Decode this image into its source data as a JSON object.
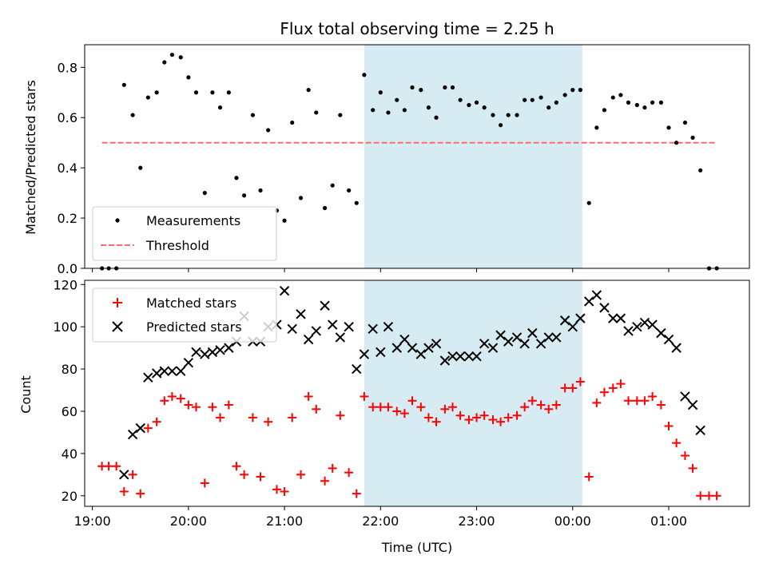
{
  "chart_data": [
    {
      "type": "scatter",
      "title": "Flux total observing time = 2.25 h",
      "xlabel": "",
      "ylabel": "Matched/Predicted stars",
      "ylim": [
        0,
        0.89
      ],
      "yticks": [
        0.0,
        0.2,
        0.4,
        0.6,
        0.8
      ],
      "ytick_labels": [
        "0.0",
        "0.2",
        "0.4",
        "0.6",
        "0.8"
      ],
      "grid": false,
      "legend_position": "lower-left",
      "shaded_region": {
        "x_start": 21.83,
        "x_end": 24.1,
        "color": "#add8e6"
      },
      "colors": {
        "measurements": "#000000",
        "threshold": "#ff6b6b",
        "shade": "#add8e6"
      },
      "series": [
        {
          "name": "Measurements",
          "kind": "points",
          "x": [
            19.1,
            19.17,
            19.25,
            19.33,
            19.42,
            19.5,
            19.58,
            19.67,
            19.75,
            19.83,
            19.92,
            20.0,
            20.08,
            20.17,
            20.25,
            20.33,
            20.42,
            20.5,
            20.58,
            20.67,
            20.75,
            20.83,
            20.92,
            21.0,
            21.08,
            21.17,
            21.25,
            21.33,
            21.42,
            21.5,
            21.58,
            21.67,
            21.75,
            21.83,
            21.92,
            22.0,
            22.08,
            22.17,
            22.25,
            22.33,
            22.42,
            22.5,
            22.58,
            22.67,
            22.75,
            22.83,
            22.92,
            23.0,
            23.08,
            23.17,
            23.25,
            23.33,
            23.42,
            23.5,
            23.58,
            23.67,
            23.75,
            23.83,
            23.92,
            24.0,
            24.08,
            24.17,
            24.25,
            24.33,
            24.42,
            24.5,
            24.58,
            24.67,
            24.75,
            24.83,
            24.92,
            25.0,
            25.08,
            25.17,
            25.25,
            25.33,
            25.42,
            25.5
          ],
          "y": [
            0.0,
            0.0,
            0.0,
            0.73,
            0.61,
            0.4,
            0.68,
            0.7,
            0.82,
            0.85,
            0.84,
            0.76,
            0.7,
            0.3,
            0.7,
            0.64,
            0.7,
            0.36,
            0.29,
            0.61,
            0.31,
            0.55,
            0.23,
            0.19,
            0.58,
            0.28,
            0.71,
            0.62,
            0.24,
            0.33,
            0.61,
            0.31,
            0.26,
            0.77,
            0.63,
            0.7,
            0.62,
            0.67,
            0.63,
            0.72,
            0.71,
            0.64,
            0.6,
            0.72,
            0.72,
            0.67,
            0.65,
            0.66,
            0.64,
            0.61,
            0.57,
            0.61,
            0.61,
            0.67,
            0.67,
            0.68,
            0.64,
            0.66,
            0.69,
            0.71,
            0.71,
            0.26,
            0.56,
            0.63,
            0.68,
            0.69,
            0.66,
            0.65,
            0.64,
            0.66,
            0.66,
            0.56,
            0.5,
            0.58,
            0.52,
            0.39,
            0.0,
            0.0
          ]
        },
        {
          "name": "Threshold",
          "kind": "dashed-line",
          "x": [
            19.1,
            25.5
          ],
          "y": [
            0.5,
            0.5
          ]
        }
      ]
    },
    {
      "type": "scatter",
      "title": "",
      "xlabel": "Time (UTC)",
      "ylabel": "Count",
      "ylim": [
        15,
        122
      ],
      "yticks": [
        20,
        40,
        60,
        80,
        100,
        120
      ],
      "ytick_labels": [
        "20",
        "40",
        "60",
        "80",
        "100",
        "120"
      ],
      "xlim": [
        18.92,
        25.84
      ],
      "xticks": [
        19,
        20,
        21,
        22,
        23,
        24,
        25
      ],
      "xtick_labels": [
        "19:00",
        "20:00",
        "21:00",
        "22:00",
        "23:00",
        "00:00",
        "01:00"
      ],
      "grid": false,
      "legend_position": "upper-left",
      "shaded_region": {
        "x_start": 21.83,
        "x_end": 24.1,
        "color": "#add8e6"
      },
      "colors": {
        "matched": "#ff0000",
        "predicted": "#000000",
        "shade": "#add8e6"
      },
      "series": [
        {
          "name": "Matched stars",
          "kind": "plus",
          "x": [
            19.1,
            19.17,
            19.25,
            19.33,
            19.42,
            19.5,
            19.58,
            19.67,
            19.75,
            19.83,
            19.92,
            20.0,
            20.08,
            20.17,
            20.25,
            20.33,
            20.42,
            20.5,
            20.58,
            20.67,
            20.75,
            20.83,
            20.92,
            21.0,
            21.08,
            21.17,
            21.25,
            21.33,
            21.42,
            21.5,
            21.58,
            21.67,
            21.75,
            21.83,
            21.92,
            22.0,
            22.08,
            22.17,
            22.25,
            22.33,
            22.42,
            22.5,
            22.58,
            22.67,
            22.75,
            22.83,
            22.92,
            23.0,
            23.08,
            23.17,
            23.25,
            23.33,
            23.42,
            23.5,
            23.58,
            23.67,
            23.75,
            23.83,
            23.92,
            24.0,
            24.08,
            24.17,
            24.25,
            24.33,
            24.42,
            24.5,
            24.58,
            24.67,
            24.75,
            24.83,
            24.92,
            25.0,
            25.08,
            25.17,
            25.25,
            25.33,
            25.42,
            25.5
          ],
          "y": [
            34,
            34,
            34,
            22,
            30,
            21,
            52,
            55,
            65,
            67,
            66,
            63,
            62,
            26,
            62,
            57,
            63,
            34,
            30,
            57,
            29,
            55,
            23,
            22,
            57,
            30,
            67,
            61,
            27,
            33,
            58,
            31,
            21,
            67,
            62,
            62,
            62,
            60,
            59,
            65,
            62,
            57,
            55,
            61,
            62,
            58,
            56,
            57,
            58,
            56,
            55,
            57,
            58,
            62,
            65,
            63,
            61,
            63,
            71,
            71,
            74,
            29,
            64,
            69,
            71,
            73,
            65,
            65,
            65,
            67,
            63,
            53,
            45,
            39,
            33,
            20,
            20,
            20
          ]
        },
        {
          "name": "Predicted stars",
          "kind": "x",
          "x": [
            19.33,
            19.42,
            19.5,
            19.58,
            19.67,
            19.75,
            19.83,
            19.92,
            20.0,
            20.08,
            20.17,
            20.25,
            20.33,
            20.42,
            20.5,
            20.58,
            20.67,
            20.75,
            20.83,
            20.92,
            21.0,
            21.08,
            21.17,
            21.25,
            21.33,
            21.42,
            21.5,
            21.58,
            21.67,
            21.75,
            21.83,
            21.92,
            22.0,
            22.08,
            22.17,
            22.25,
            22.33,
            22.42,
            22.5,
            22.58,
            22.67,
            22.75,
            22.83,
            22.92,
            23.0,
            23.08,
            23.17,
            23.25,
            23.33,
            23.42,
            23.5,
            23.58,
            23.67,
            23.75,
            23.83,
            23.92,
            24.0,
            24.08,
            24.17,
            24.25,
            24.33,
            24.42,
            24.5,
            24.58,
            24.67,
            24.75,
            24.83,
            24.92,
            25.0,
            25.08,
            25.17,
            25.25,
            25.33
          ],
          "y": [
            30,
            49,
            52,
            76,
            78,
            79,
            79,
            79,
            83,
            88,
            87,
            88,
            89,
            90,
            93,
            105,
            93,
            93,
            100,
            101,
            117,
            99,
            106,
            94,
            98,
            110,
            101,
            95,
            100,
            80,
            87,
            99,
            88,
            100,
            90,
            94,
            90,
            87,
            90,
            92,
            84,
            86,
            86,
            86,
            86,
            92,
            90,
            96,
            93,
            95,
            92,
            97,
            92,
            95,
            95,
            103,
            100,
            104,
            112,
            115,
            109,
            104,
            104,
            98,
            100,
            102,
            101,
            97,
            94,
            90,
            67,
            63,
            51
          ]
        }
      ]
    }
  ]
}
